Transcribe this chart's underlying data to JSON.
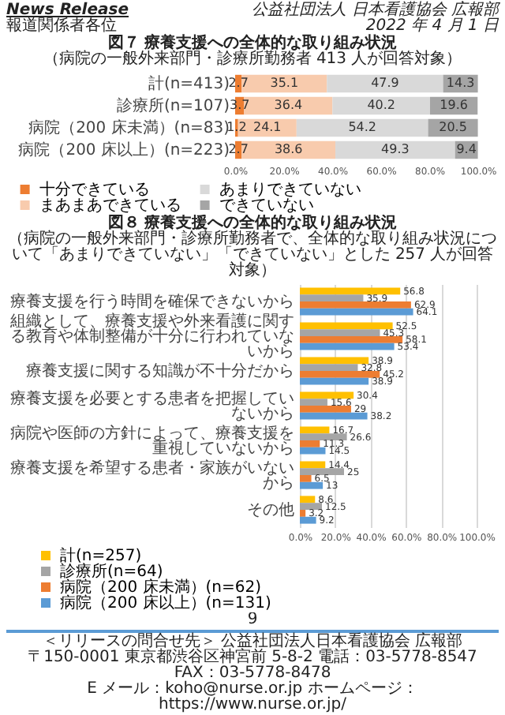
{
  "chart_data": [
    {
      "type": "bar",
      "orientation": "horizontal",
      "stacked": true,
      "title": "図７ 療養支援への全体的な取り組み状況",
      "subtitle": "（病院の一般外来部門・診療所勤務者 413 人が回答対象）",
      "annotations": [
        "News Release",
        "報道関係者各位",
        "公益社団法人 日本看護協会 広報部",
        "2022 年 4 月 1 日"
      ],
      "categories": [
        "計(n=413)",
        "診療所(n=107)",
        "病院（200 床未満）(n=83)",
        "病院（200 床以上）(n=223)"
      ],
      "series": [
        {
          "name": "十分できている",
          "color": "#ed7d31",
          "values": [
            2.7,
            3.7,
            1.2,
            2.7
          ]
        },
        {
          "name": "まあまあできている",
          "color": "#f8cbad",
          "values": [
            35.1,
            36.4,
            24.1,
            38.6
          ]
        },
        {
          "name": "あまりできていない",
          "color": "#d9d9d9",
          "values": [
            47.9,
            40.2,
            54.2,
            49.3
          ]
        },
        {
          "name": "できていない",
          "color": "#a5a5a5",
          "values": [
            14.3,
            19.6,
            20.5,
            9.4
          ]
        }
      ],
      "xlim": [
        0,
        100
      ],
      "xticks": [
        {
          "value": 0,
          "label": "0.0%"
        },
        {
          "value": 20,
          "label": "20.0%"
        },
        {
          "value": 40,
          "label": "40.0%"
        },
        {
          "value": 60,
          "label": "60.0%"
        },
        {
          "value": 80,
          "label": "80.0%"
        },
        {
          "value": 100,
          "label": "100.0%"
        }
      ],
      "data_labels": true,
      "legend": "bottom"
    },
    {
      "type": "bar",
      "orientation": "horizontal",
      "title": "図８ 療養支援への全体的な取り組み状況",
      "subtitle": "（病院の一般外来部門・診療所勤務者で、全体的な取り組み状況について「あまりできていない」「できていない」とした 257 人が回答対象）",
      "annotations": [
        "9",
        "＜リリースの問合せ先＞ 公益社団法人日本看護協会 広報部",
        "〒150-0001 東京都渋谷区神宮前 5-8-2 電話：03-5778-8547 FAX：03-5778-8478",
        "E メール：koho@nurse.or.jp ホームページ：https://www.nurse.or.jp/"
      ],
      "categories": [
        "療養支援を行う時間を確保できないから",
        "組織として、療養支援や外来看護に関する教育や体制整備が十分に行われていないから",
        "療養支援に関する知識が不十分だから",
        "療養支援を必要とする患者を把握していないから",
        "病院や医師の方針によって、療養支援を重視していないから",
        "療養支援を希望する患者・家族がいないから",
        "その他"
      ],
      "series": [
        {
          "name": "計(n=257)",
          "color": "#ffc000",
          "values": [
            56.8,
            52.5,
            38.9,
            30.4,
            16.7,
            14.4,
            8.6
          ]
        },
        {
          "name": "診療所(n=64)",
          "color": "#a5a5a5",
          "values": [
            35.9,
            45.3,
            32.8,
            15.6,
            26.6,
            25.0,
            12.5
          ]
        },
        {
          "name": "病院（200 床未満）(n=62)",
          "color": "#ed7d31",
          "values": [
            62.9,
            58.1,
            45.2,
            29.0,
            11.3,
            6.5,
            3.2
          ]
        },
        {
          "name": "病院（200 床以上）(n=131)",
          "color": "#5b9bd5",
          "values": [
            64.1,
            53.4,
            38.9,
            38.2,
            14.5,
            13.0,
            9.2
          ]
        }
      ],
      "xlim": [
        0,
        100
      ],
      "xticks": [
        {
          "value": 0,
          "label": "0.0%"
        },
        {
          "value": 20,
          "label": "20.0%"
        },
        {
          "value": 40,
          "label": "40.0%"
        },
        {
          "value": 60,
          "label": "60.0%"
        },
        {
          "value": 80,
          "label": "80.0%"
        },
        {
          "value": 100,
          "label": "100.0%"
        }
      ],
      "grid": "x",
      "data_labels": true,
      "legend": "bottom"
    }
  ]
}
